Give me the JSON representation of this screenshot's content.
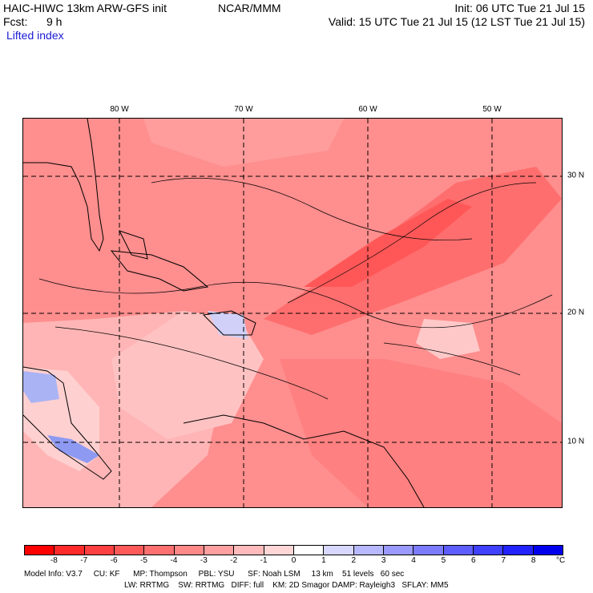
{
  "header": {
    "model": "HAIC-HIWC 13km ARW-GFS init",
    "org": "NCAR/MMM",
    "init": "Init: 06 UTC Tue 21 Jul 15",
    "fcst_label": "Fcst:",
    "fcst_value": "9 h",
    "valid": "Valid: 15 UTC Tue 21 Jul 15 (12 LST Tue 21 Jul 15)",
    "field": "Lifted index"
  },
  "map": {
    "lon_labels": [
      "80 W",
      "70 W",
      "60 W",
      "50 W"
    ],
    "lat_labels": [
      "30 N",
      "20 N",
      "10 N"
    ]
  },
  "colorbar": {
    "labels": [
      "-8",
      "-7",
      "-6",
      "-5",
      "-4",
      "-3",
      "-2",
      "-1",
      "0",
      "1",
      "2",
      "3",
      "4",
      "5",
      "6",
      "7",
      "8"
    ],
    "unit": "°C",
    "colors": [
      "#ff0000",
      "#ff2a2a",
      "#ff4040",
      "#ff5a5a",
      "#ff7070",
      "#ff8888",
      "#ffa0a0",
      "#ffbbbb",
      "#ffd6d6",
      "#ffffff",
      "#d8d8ff",
      "#b8b8ff",
      "#9a9aff",
      "#7c7cff",
      "#5e5eff",
      "#4040ff",
      "#2222ff",
      "#0000ee"
    ]
  },
  "footer": {
    "line1": "Model Info: V3.7     CU: KF      MP: Thompson     PBL: YSU      SF: Noah LSM     13 km    51 levels   60 sec",
    "line2": "LW: RRTMG    SW: RRTMG   DIFF: full    KM: 2D Smagor DAMP: Rayleigh3   SFLAY: MM5"
  }
}
